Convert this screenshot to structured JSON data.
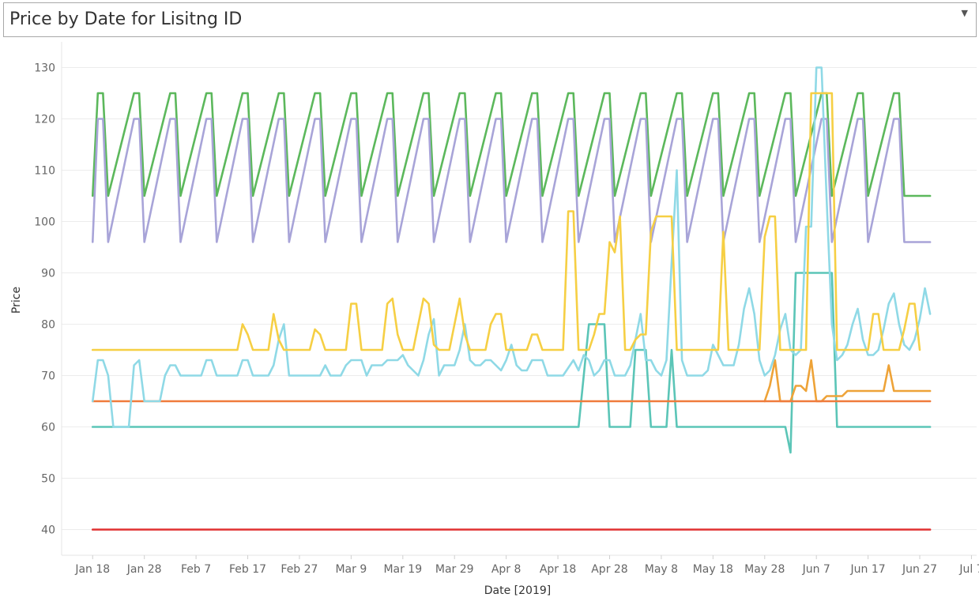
{
  "header": {
    "title": "Price by Date for Lisitng ID",
    "dropdown_icon": "chevron-down-icon"
  },
  "chart_data": {
    "type": "line",
    "title": "Price by Date for Lisitng ID",
    "xlabel": "Date [2019]",
    "ylabel": "Price",
    "ylim": [
      35,
      135
    ],
    "yticks": [
      40,
      50,
      60,
      70,
      80,
      90,
      100,
      110,
      120,
      130
    ],
    "x_range": [
      "2019-01-12",
      "2019-07-08"
    ],
    "xticks": [
      {
        "date": "2019-01-18",
        "label": "Jan 18"
      },
      {
        "date": "2019-01-28",
        "label": "Jan 28"
      },
      {
        "date": "2019-02-07",
        "label": "Feb 7"
      },
      {
        "date": "2019-02-17",
        "label": "Feb 17"
      },
      {
        "date": "2019-02-27",
        "label": "Feb 27"
      },
      {
        "date": "2019-03-09",
        "label": "Mar 9"
      },
      {
        "date": "2019-03-19",
        "label": "Mar 19"
      },
      {
        "date": "2019-03-29",
        "label": "Mar 29"
      },
      {
        "date": "2019-04-08",
        "label": "Apr 8"
      },
      {
        "date": "2019-04-18",
        "label": "Apr 18"
      },
      {
        "date": "2019-04-28",
        "label": "Apr 28"
      },
      {
        "date": "2019-05-08",
        "label": "May 8"
      },
      {
        "date": "2019-05-18",
        "label": "May 18"
      },
      {
        "date": "2019-05-28",
        "label": "May 28"
      },
      {
        "date": "2019-06-07",
        "label": "Jun 7"
      },
      {
        "date": "2019-06-17",
        "label": "Jun 17"
      },
      {
        "date": "2019-06-27",
        "label": "Jun 27"
      },
      {
        "date": "2019-07-07",
        "label": "Jul 7"
      }
    ],
    "grid": "horizontal",
    "legend": "none",
    "series": [
      {
        "color": "#e03131",
        "points": [
          [
            "2019-01-18",
            40
          ],
          [
            "2019-06-29",
            40
          ]
        ]
      },
      {
        "color": "#ef7b3c",
        "points": [
          [
            "2019-01-18",
            65
          ],
          [
            "2019-06-29",
            65
          ]
        ]
      },
      {
        "color": "#eea338",
        "points": [
          [
            "2019-05-28",
            65
          ],
          [
            "2019-05-29",
            68
          ],
          [
            "2019-05-30",
            73
          ],
          [
            "2019-05-31",
            65
          ],
          [
            "2019-06-02",
            65
          ],
          [
            "2019-06-03",
            68
          ],
          [
            "2019-06-04",
            68
          ],
          [
            "2019-06-05",
            67
          ],
          [
            "2019-06-06",
            73
          ],
          [
            "2019-06-07",
            65
          ],
          [
            "2019-06-08",
            65
          ],
          [
            "2019-06-09",
            66
          ],
          [
            "2019-06-12",
            66
          ],
          [
            "2019-06-13",
            67
          ],
          [
            "2019-06-20",
            67
          ],
          [
            "2019-06-21",
            72
          ],
          [
            "2019-06-22",
            67
          ],
          [
            "2019-06-29",
            67
          ]
        ]
      },
      {
        "color": "#5bc5b7",
        "points": [
          [
            "2019-01-18",
            60
          ],
          [
            "2019-04-22",
            60
          ],
          [
            "2019-04-24",
            80
          ],
          [
            "2019-04-27",
            80
          ],
          [
            "2019-04-28",
            60
          ],
          [
            "2019-05-02",
            60
          ],
          [
            "2019-05-03",
            75
          ],
          [
            "2019-05-05",
            75
          ],
          [
            "2019-05-06",
            60
          ],
          [
            "2019-05-09",
            60
          ],
          [
            "2019-05-10",
            75
          ],
          [
            "2019-05-11",
            60
          ],
          [
            "2019-06-01",
            60
          ],
          [
            "2019-06-02",
            55
          ],
          [
            "2019-06-03",
            90
          ],
          [
            "2019-06-10",
            90
          ],
          [
            "2019-06-11",
            60
          ],
          [
            "2019-06-29",
            60
          ]
        ]
      },
      {
        "color": "#8fd9e6",
        "points": [
          [
            "2019-01-18",
            65
          ],
          [
            "2019-01-19",
            73
          ],
          [
            "2019-01-20",
            73
          ],
          [
            "2019-01-21",
            70
          ],
          [
            "2019-01-22",
            60
          ],
          [
            "2019-01-25",
            60
          ],
          [
            "2019-01-26",
            72
          ],
          [
            "2019-01-27",
            73
          ],
          [
            "2019-01-28",
            65
          ],
          [
            "2019-01-31",
            65
          ],
          [
            "2019-02-01",
            70
          ],
          [
            "2019-02-02",
            72
          ],
          [
            "2019-02-03",
            72
          ],
          [
            "2019-02-04",
            70
          ],
          [
            "2019-02-08",
            70
          ],
          [
            "2019-02-09",
            73
          ],
          [
            "2019-02-10",
            73
          ],
          [
            "2019-02-11",
            70
          ],
          [
            "2019-02-15",
            70
          ],
          [
            "2019-02-16",
            73
          ],
          [
            "2019-02-17",
            73
          ],
          [
            "2019-02-18",
            70
          ],
          [
            "2019-02-21",
            70
          ],
          [
            "2019-02-22",
            72
          ],
          [
            "2019-02-23",
            77
          ],
          [
            "2019-02-24",
            80
          ],
          [
            "2019-02-25",
            70
          ],
          [
            "2019-03-03",
            70
          ],
          [
            "2019-03-04",
            72
          ],
          [
            "2019-03-05",
            70
          ],
          [
            "2019-03-07",
            70
          ],
          [
            "2019-03-08",
            72
          ],
          [
            "2019-03-09",
            73
          ],
          [
            "2019-03-11",
            73
          ],
          [
            "2019-03-12",
            70
          ],
          [
            "2019-03-13",
            72
          ],
          [
            "2019-03-15",
            72
          ],
          [
            "2019-03-16",
            73
          ],
          [
            "2019-03-18",
            73
          ],
          [
            "2019-03-19",
            74
          ],
          [
            "2019-03-20",
            72
          ],
          [
            "2019-03-22",
            70
          ],
          [
            "2019-03-23",
            73
          ],
          [
            "2019-03-24",
            78
          ],
          [
            "2019-03-25",
            81
          ],
          [
            "2019-03-26",
            70
          ],
          [
            "2019-03-27",
            72
          ],
          [
            "2019-03-29",
            72
          ],
          [
            "2019-03-30",
            75
          ],
          [
            "2019-03-31",
            80
          ],
          [
            "2019-04-01",
            73
          ],
          [
            "2019-04-02",
            72
          ],
          [
            "2019-04-03",
            72
          ],
          [
            "2019-04-04",
            73
          ],
          [
            "2019-04-05",
            73
          ],
          [
            "2019-04-07",
            71
          ],
          [
            "2019-04-08",
            73
          ],
          [
            "2019-04-09",
            76
          ],
          [
            "2019-04-10",
            72
          ],
          [
            "2019-04-11",
            71
          ],
          [
            "2019-04-12",
            71
          ],
          [
            "2019-04-13",
            73
          ],
          [
            "2019-04-15",
            73
          ],
          [
            "2019-04-16",
            70
          ],
          [
            "2019-04-19",
            70
          ],
          [
            "2019-04-21",
            73
          ],
          [
            "2019-04-22",
            71
          ],
          [
            "2019-04-23",
            74
          ],
          [
            "2019-04-24",
            73
          ],
          [
            "2019-04-25",
            70
          ],
          [
            "2019-04-26",
            71
          ],
          [
            "2019-04-27",
            73
          ],
          [
            "2019-04-28",
            73
          ],
          [
            "2019-04-29",
            70
          ],
          [
            "2019-05-01",
            70
          ],
          [
            "2019-05-02",
            72
          ],
          [
            "2019-05-03",
            77
          ],
          [
            "2019-05-04",
            82
          ],
          [
            "2019-05-05",
            73
          ],
          [
            "2019-05-06",
            73
          ],
          [
            "2019-05-07",
            71
          ],
          [
            "2019-05-08",
            70
          ],
          [
            "2019-05-09",
            73
          ],
          [
            "2019-05-10",
            92
          ],
          [
            "2019-05-11",
            110
          ],
          [
            "2019-05-12",
            73
          ],
          [
            "2019-05-13",
            70
          ],
          [
            "2019-05-16",
            70
          ],
          [
            "2019-05-17",
            71
          ],
          [
            "2019-05-18",
            76
          ],
          [
            "2019-05-19",
            74
          ],
          [
            "2019-05-20",
            72
          ],
          [
            "2019-05-22",
            72
          ],
          [
            "2019-05-23",
            76
          ],
          [
            "2019-05-24",
            83
          ],
          [
            "2019-05-25",
            87
          ],
          [
            "2019-05-26",
            82
          ],
          [
            "2019-05-27",
            73
          ],
          [
            "2019-05-28",
            70
          ],
          [
            "2019-05-29",
            71
          ],
          [
            "2019-05-30",
            74
          ],
          [
            "2019-05-31",
            79
          ],
          [
            "2019-06-01",
            82
          ],
          [
            "2019-06-02",
            75
          ],
          [
            "2019-06-03",
            74
          ],
          [
            "2019-06-04",
            75
          ],
          [
            "2019-06-05",
            99
          ],
          [
            "2019-06-06",
            99
          ],
          [
            "2019-06-07",
            130
          ],
          [
            "2019-06-08",
            130
          ],
          [
            "2019-06-09",
            104
          ],
          [
            "2019-06-10",
            80
          ],
          [
            "2019-06-11",
            73
          ],
          [
            "2019-06-12",
            74
          ],
          [
            "2019-06-13",
            76
          ],
          [
            "2019-06-14",
            80
          ],
          [
            "2019-06-15",
            83
          ],
          [
            "2019-06-16",
            77
          ],
          [
            "2019-06-17",
            74
          ],
          [
            "2019-06-18",
            74
          ],
          [
            "2019-06-19",
            75
          ],
          [
            "2019-06-20",
            79
          ],
          [
            "2019-06-21",
            84
          ],
          [
            "2019-06-22",
            86
          ],
          [
            "2019-06-23",
            80
          ],
          [
            "2019-06-24",
            76
          ],
          [
            "2019-06-25",
            75
          ],
          [
            "2019-06-26",
            77
          ],
          [
            "2019-06-27",
            81
          ],
          [
            "2019-06-28",
            87
          ],
          [
            "2019-06-29",
            82
          ]
        ]
      },
      {
        "color": "#f6cf44",
        "points": [
          [
            "2019-01-18",
            75
          ],
          [
            "2019-02-15",
            75
          ],
          [
            "2019-02-16",
            80
          ],
          [
            "2019-02-17",
            78
          ],
          [
            "2019-02-18",
            75
          ],
          [
            "2019-02-21",
            75
          ],
          [
            "2019-02-22",
            82
          ],
          [
            "2019-02-23",
            77
          ],
          [
            "2019-02-24",
            75
          ],
          [
            "2019-03-01",
            75
          ],
          [
            "2019-03-02",
            79
          ],
          [
            "2019-03-03",
            78
          ],
          [
            "2019-03-04",
            75
          ],
          [
            "2019-03-08",
            75
          ],
          [
            "2019-03-09",
            84
          ],
          [
            "2019-03-10",
            84
          ],
          [
            "2019-03-11",
            75
          ],
          [
            "2019-03-15",
            75
          ],
          [
            "2019-03-16",
            84
          ],
          [
            "2019-03-17",
            85
          ],
          [
            "2019-03-18",
            78
          ],
          [
            "2019-03-19",
            75
          ],
          [
            "2019-03-21",
            75
          ],
          [
            "2019-03-22",
            80
          ],
          [
            "2019-03-23",
            85
          ],
          [
            "2019-03-24",
            84
          ],
          [
            "2019-03-25",
            76
          ],
          [
            "2019-03-26",
            75
          ],
          [
            "2019-03-28",
            75
          ],
          [
            "2019-03-29",
            80
          ],
          [
            "2019-03-30",
            85
          ],
          [
            "2019-03-31",
            78
          ],
          [
            "2019-04-01",
            75
          ],
          [
            "2019-04-04",
            75
          ],
          [
            "2019-04-05",
            80
          ],
          [
            "2019-04-06",
            82
          ],
          [
            "2019-04-07",
            82
          ],
          [
            "2019-04-08",
            75
          ],
          [
            "2019-04-12",
            75
          ],
          [
            "2019-04-13",
            78
          ],
          [
            "2019-04-14",
            78
          ],
          [
            "2019-04-15",
            75
          ],
          [
            "2019-04-19",
            75
          ],
          [
            "2019-04-20",
            102
          ],
          [
            "2019-04-21",
            102
          ],
          [
            "2019-04-22",
            75
          ],
          [
            "2019-04-24",
            75
          ],
          [
            "2019-04-25",
            78
          ],
          [
            "2019-04-26",
            82
          ],
          [
            "2019-04-27",
            82
          ],
          [
            "2019-04-28",
            96
          ],
          [
            "2019-04-29",
            94
          ],
          [
            "2019-04-30",
            101
          ],
          [
            "2019-05-01",
            75
          ],
          [
            "2019-05-02",
            75
          ],
          [
            "2019-05-03",
            77
          ],
          [
            "2019-05-04",
            78
          ],
          [
            "2019-05-05",
            78
          ],
          [
            "2019-05-06",
            98
          ],
          [
            "2019-05-07",
            101
          ],
          [
            "2019-05-10",
            101
          ],
          [
            "2019-05-11",
            75
          ],
          [
            "2019-05-19",
            75
          ],
          [
            "2019-05-20",
            98
          ],
          [
            "2019-05-21",
            75
          ],
          [
            "2019-05-27",
            75
          ],
          [
            "2019-05-28",
            97
          ],
          [
            "2019-05-29",
            101
          ],
          [
            "2019-05-30",
            101
          ],
          [
            "2019-05-31",
            75
          ],
          [
            "2019-06-05",
            75
          ],
          [
            "2019-06-06",
            125
          ],
          [
            "2019-06-10",
            125
          ],
          [
            "2019-06-11",
            75
          ],
          [
            "2019-06-17",
            75
          ],
          [
            "2019-06-18",
            82
          ],
          [
            "2019-06-19",
            82
          ],
          [
            "2019-06-20",
            75
          ],
          [
            "2019-06-23",
            75
          ],
          [
            "2019-06-24",
            79
          ],
          [
            "2019-06-25",
            84
          ],
          [
            "2019-06-26",
            84
          ],
          [
            "2019-06-27",
            75
          ]
        ]
      },
      {
        "color": "#a8a4d8",
        "pattern": {
          "start": "2019-01-18",
          "end": "2019-06-29",
          "period_days": 7,
          "peak_start": "2019-01-19",
          "base": 96,
          "peak": 120
        }
      },
      {
        "color": "#5cb85c",
        "pattern": {
          "start": "2019-01-18",
          "end": "2019-06-29",
          "period_days": 7,
          "peak_start": "2019-01-19",
          "base": 105,
          "peak": 125
        }
      }
    ]
  }
}
